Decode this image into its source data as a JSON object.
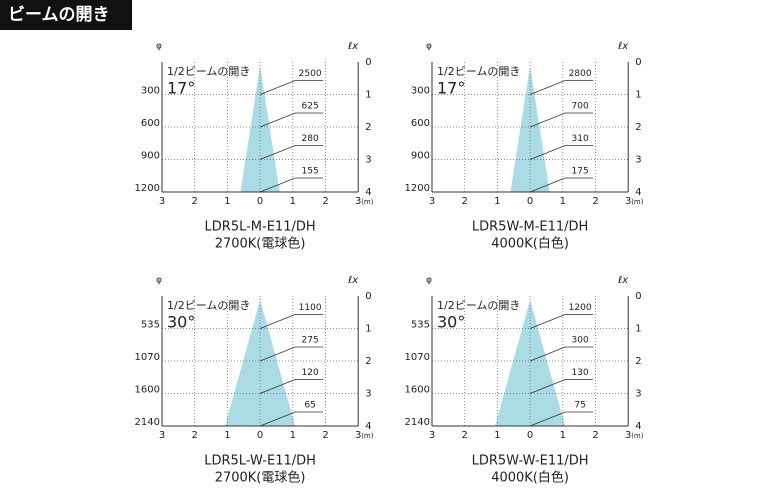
{
  "header": {
    "title": "ビームの開き"
  },
  "panels": [
    {
      "beam_label": "1/2ビームの開き",
      "angle": "17°",
      "diameter_unit": "φ",
      "diameters": [
        "300",
        "600",
        "900",
        "1200"
      ],
      "lux_unit": "ℓx",
      "distances": [
        "0",
        "1",
        "2",
        "3",
        "4"
      ],
      "x_labels": [
        "3",
        "2",
        "1",
        "0",
        "1",
        "2",
        "3"
      ],
      "x_unit": "(m)",
      "lux": [
        "2500",
        "625",
        "280",
        "155"
      ],
      "model": "LDR5L-M-E11/DH",
      "color_temp": "2700K(電球色)"
    },
    {
      "beam_label": "1/2ビームの開き",
      "angle": "17°",
      "diameter_unit": "φ",
      "diameters": [
        "300",
        "600",
        "900",
        "1200"
      ],
      "lux_unit": "ℓx",
      "distances": [
        "0",
        "1",
        "2",
        "3",
        "4"
      ],
      "x_labels": [
        "3",
        "2",
        "1",
        "0",
        "1",
        "2",
        "3"
      ],
      "x_unit": "(m)",
      "lux": [
        "2800",
        "700",
        "310",
        "175"
      ],
      "model": "LDR5W-M-E11/DH",
      "color_temp": "4000K(白色)"
    },
    {
      "beam_label": "1/2ビームの開き",
      "angle": "30°",
      "diameter_unit": "φ",
      "diameters": [
        "535",
        "1070",
        "1600",
        "2140"
      ],
      "lux_unit": "ℓx",
      "distances": [
        "0",
        "1",
        "2",
        "3",
        "4"
      ],
      "x_labels": [
        "3",
        "2",
        "1",
        "0",
        "1",
        "2",
        "3"
      ],
      "x_unit": "(m)",
      "lux": [
        "1100",
        "275",
        "120",
        "65"
      ],
      "model": "LDR5L-W-E11/DH",
      "color_temp": "2700K(電球色)"
    },
    {
      "beam_label": "1/2ビームの開き",
      "angle": "30°",
      "diameter_unit": "φ",
      "diameters": [
        "535",
        "1070",
        "1600",
        "2140"
      ],
      "lux_unit": "ℓx",
      "distances": [
        "0",
        "1",
        "2",
        "3",
        "4"
      ],
      "x_labels": [
        "3",
        "2",
        "1",
        "0",
        "1",
        "2",
        "3"
      ],
      "x_unit": "(m)",
      "lux": [
        "1200",
        "300",
        "130",
        "75"
      ],
      "model": "LDR5W-W-E11/DH",
      "color_temp": "4000K(白色)"
    }
  ]
}
